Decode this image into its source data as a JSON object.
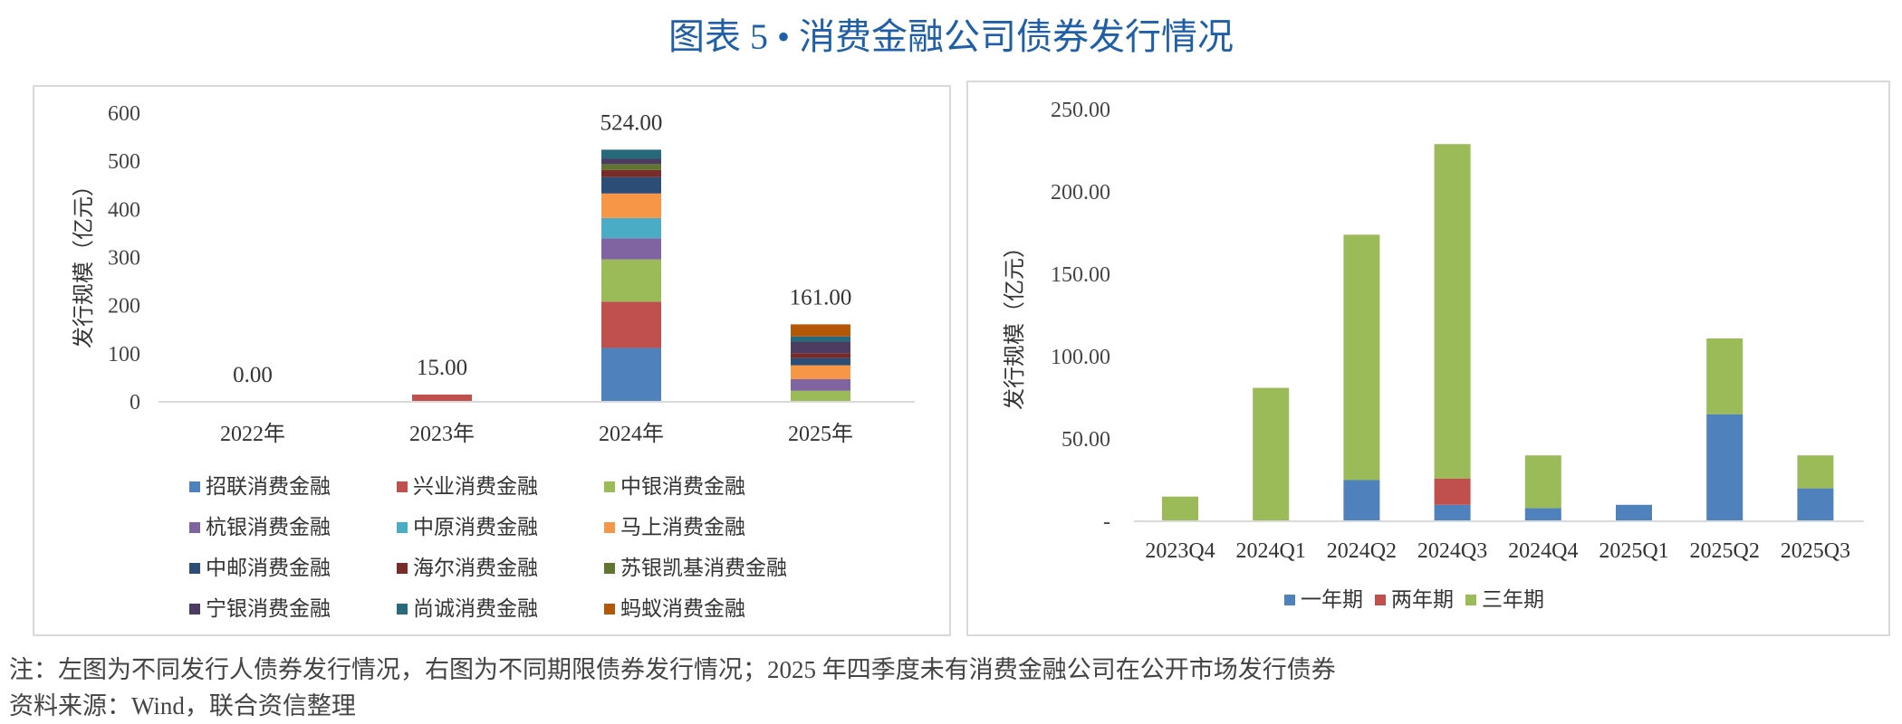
{
  "title": "图表 5 • 消费金融公司债券发行情况",
  "notes": {
    "note": "注：左图为不同发行人债券发行情况，右图为不同期限债券发行情况；2025 年四季度未有消费金融公司在公开市场发行债券",
    "source": "资料来源：Wind，联合资信整理"
  },
  "chart_data": [
    {
      "type": "bar",
      "stacked": true,
      "ylabel": "发行规模（亿元）",
      "ylim": [
        0,
        600
      ],
      "yticks": [
        "0",
        "100",
        "200",
        "300",
        "400",
        "500",
        "600"
      ],
      "grid": false,
      "legend_position": "bottom",
      "categories": [
        "2022年",
        "2023年",
        "2024年",
        "2025年"
      ],
      "totals": [
        "0.00",
        "15.00",
        "524.00",
        "161.00"
      ],
      "series": [
        {
          "name": "招联消费金融",
          "color": "#4f81bd",
          "values": [
            0,
            0,
            112,
            0
          ]
        },
        {
          "name": "兴业消费金融",
          "color": "#c0504d",
          "values": [
            0,
            15,
            96,
            0
          ]
        },
        {
          "name": "中银消费金融",
          "color": "#9bbb59",
          "values": [
            0,
            0,
            88,
            23
          ]
        },
        {
          "name": "杭银消费金融",
          "color": "#8064a2",
          "values": [
            0,
            0,
            44,
            24
          ]
        },
        {
          "name": "中原消费金融",
          "color": "#4bacc6",
          "values": [
            0,
            0,
            42,
            0
          ]
        },
        {
          "name": "马上消费金融",
          "color": "#f79646",
          "values": [
            0,
            0,
            51,
            29
          ]
        },
        {
          "name": "中邮消费金融",
          "color": "#2c4d75",
          "values": [
            0,
            0,
            34,
            15
          ]
        },
        {
          "name": "海尔消费金融",
          "color": "#772c2a",
          "values": [
            0,
            0,
            15,
            10
          ]
        },
        {
          "name": "苏银凯基消费金融",
          "color": "#5f7530",
          "values": [
            0,
            0,
            12,
            0
          ]
        },
        {
          "name": "宁银消费金融",
          "color": "#4d3b62",
          "values": [
            0,
            0,
            11,
            24
          ]
        },
        {
          "name": "尚诚消费金融",
          "color": "#276a7c",
          "values": [
            0,
            0,
            19,
            11
          ]
        },
        {
          "name": "蚂蚁消费金融",
          "color": "#b65708",
          "values": [
            0,
            0,
            0,
            25
          ]
        }
      ]
    },
    {
      "type": "bar",
      "stacked": true,
      "ylabel": "发行规模（亿元）",
      "ylim": [
        0,
        250
      ],
      "yticks": [
        "-",
        "50.00",
        "100.00",
        "150.00",
        "200.00",
        "250.00"
      ],
      "grid": false,
      "legend_position": "bottom",
      "categories": [
        "2023Q4",
        "2024Q1",
        "2024Q2",
        "2024Q3",
        "2024Q4",
        "2025Q1",
        "2025Q2",
        "2025Q3"
      ],
      "series": [
        {
          "name": "一年期",
          "color": "#4f81bd",
          "values": [
            0,
            0,
            25,
            10,
            8,
            10,
            65,
            20
          ]
        },
        {
          "name": "两年期",
          "color": "#c0504d",
          "values": [
            0,
            0,
            0,
            16,
            0,
            0,
            0,
            0
          ]
        },
        {
          "name": "三年期",
          "color": "#9bbb59",
          "values": [
            15,
            81,
            149,
            203,
            32,
            0,
            46,
            20
          ]
        }
      ]
    }
  ]
}
